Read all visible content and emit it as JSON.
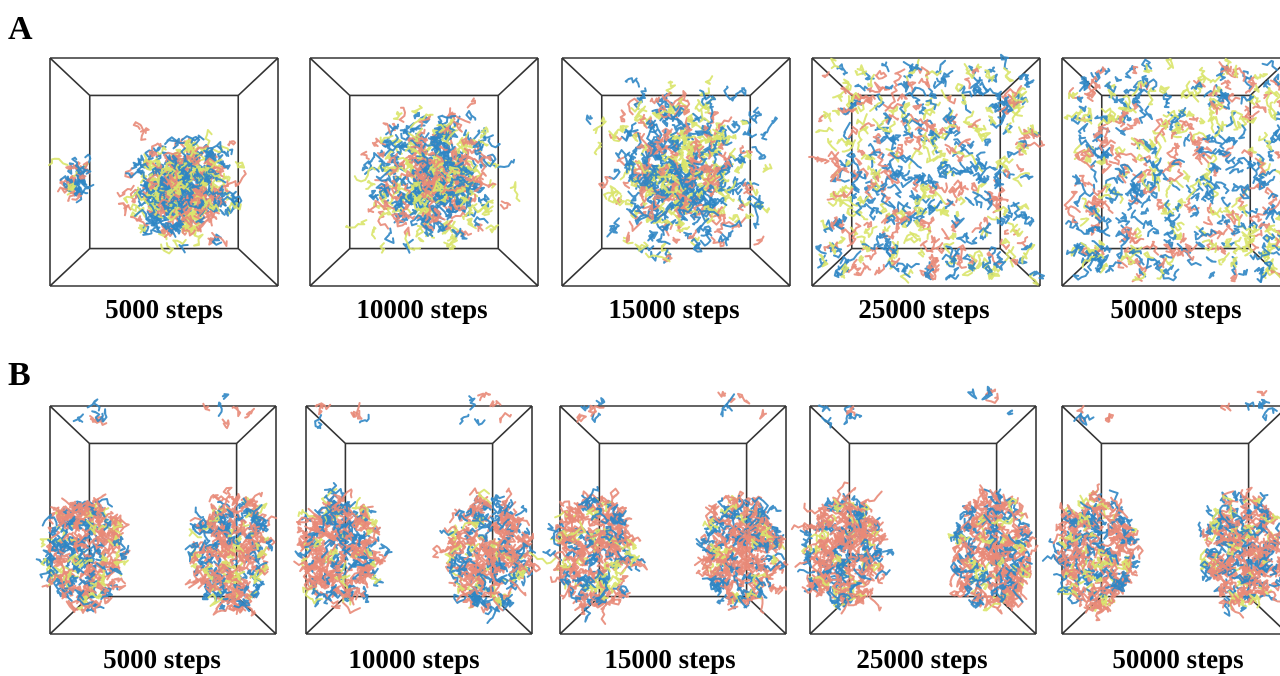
{
  "figure": {
    "rows": [
      {
        "label": "A",
        "layout": "dispersed-cluster",
        "panels": [
          {
            "caption": "5000 steps"
          },
          {
            "caption": "10000 steps"
          },
          {
            "caption": "15000 steps"
          },
          {
            "caption": "25000 steps"
          },
          {
            "caption": "50000 steps"
          }
        ]
      },
      {
        "label": "B",
        "layout": "two-micelles",
        "panels": [
          {
            "caption": "5000 steps"
          },
          {
            "caption": "10000 steps"
          },
          {
            "caption": "15000 steps"
          },
          {
            "caption": "25000 steps"
          },
          {
            "caption": "50000 steps"
          }
        ]
      }
    ],
    "colors": {
      "blue": "#2f86c4",
      "salmon": "#e88a78",
      "yellow": "#d9e46a",
      "box": "#333333"
    }
  }
}
